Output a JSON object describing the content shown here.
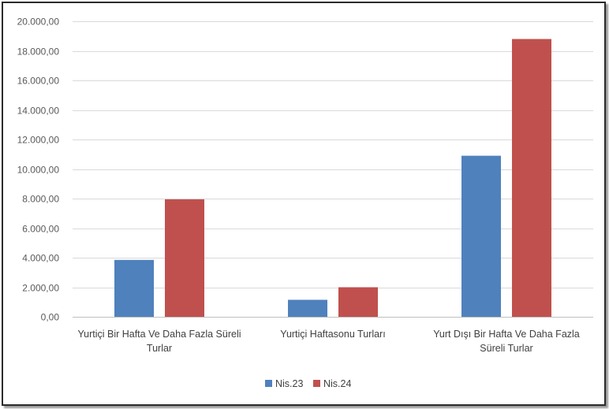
{
  "chart_data": {
    "type": "bar",
    "categories": [
      [
        "Yurtiçi Bir Hafta Ve Daha Fazla Süreli",
        "Turlar"
      ],
      [
        "Yurtiçi Haftasonu Turları"
      ],
      [
        "Yurt Dışı Bir Hafta Ve Daha Fazla",
        "Süreli Turlar"
      ]
    ],
    "series": [
      {
        "name": "Nis.23",
        "values": [
          3850,
          1150,
          10900
        ],
        "color": "#4f81bd"
      },
      {
        "name": "Nis.24",
        "values": [
          7950,
          2000,
          18800
        ],
        "color": "#c0504d"
      }
    ],
    "ylim": [
      0,
      20000
    ],
    "yticks": [
      "0,00",
      "2.000,00",
      "4.000,00",
      "6.000,00",
      "8.000,00",
      "10.000,00",
      "12.000,00",
      "14.000,00",
      "16.000,00",
      "18.000,00",
      "20.000,00"
    ],
    "ytick_values": [
      0,
      2000,
      4000,
      6000,
      8000,
      10000,
      12000,
      14000,
      16000,
      18000,
      20000
    ],
    "grid": true,
    "legend_position": "bottom",
    "xlabel": "",
    "ylabel": "",
    "title": ""
  }
}
